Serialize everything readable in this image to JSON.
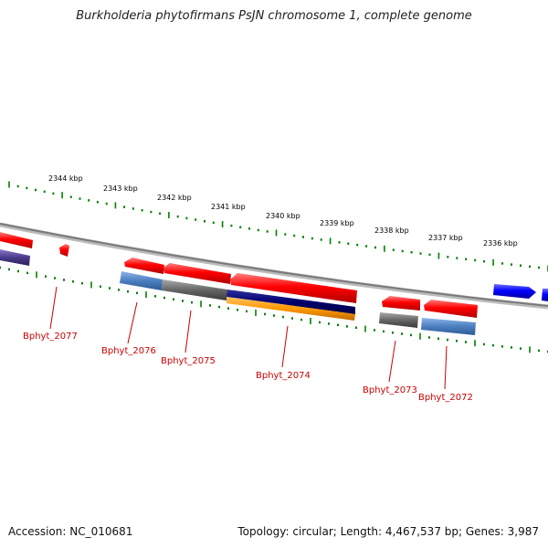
{
  "title": "Burkholderia phytofirmans PsJN chromosome 1, complete genome",
  "footer": {
    "accession": "Accession: NC_010681",
    "summary": "Topology: circular; Length: 4,467,537 bp; Genes: 3,987"
  },
  "scale_labels": [
    "2344 kbp",
    "2343 kbp",
    "2342 kbp",
    "2341 kbp",
    "2340 kbp",
    "2339 kbp",
    "2338 kbp",
    "2337 kbp",
    "2336 kbp"
  ],
  "genes": [
    "Bphyt_2077",
    "Bphyt_2076",
    "Bphyt_2075",
    "Bphyt_2074",
    "Bphyt_2073",
    "Bphyt_2072"
  ],
  "colors": {
    "forward_gene": "#ff0000",
    "reverse_gene_blue": "#0000ff",
    "backbone": "#888888",
    "ticks": "#008000",
    "cog_steelblue": "#4a7fc0",
    "cog_gray": "#666666",
    "cog_navy": "#00006e",
    "cog_orange": "#ff9900",
    "cog_purple": "#4a3a8a",
    "label": "#cc0000"
  }
}
